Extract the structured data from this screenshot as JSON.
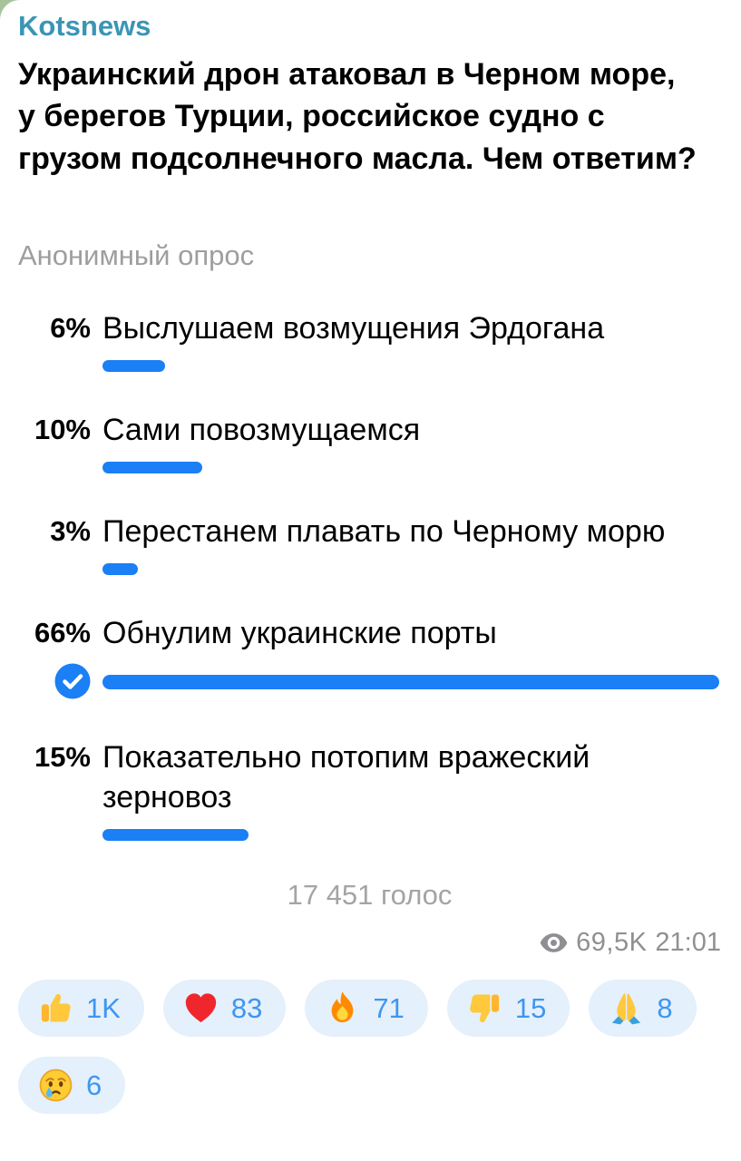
{
  "channel": {
    "name": "Kotsnews"
  },
  "post": {
    "question": "Украинский дрон атаковал в Черном море, у берегов Турции, российское судно с грузом подсолнечного масла. Чем ответим?"
  },
  "poll": {
    "type_label": "Анонимный опрос",
    "options": [
      {
        "percent": "6%",
        "value": 6,
        "label": "Выслушаем возмущения Эрдогана",
        "chosen": false
      },
      {
        "percent": "10%",
        "value": 10,
        "label": "Сами повозмущаемся",
        "chosen": false
      },
      {
        "percent": "3%",
        "value": 3,
        "label": "Перестанем плавать по Черному морю",
        "chosen": false
      },
      {
        "percent": "66%",
        "value": 66,
        "label": "Обнулим украинские порты",
        "chosen": true
      },
      {
        "percent": "15%",
        "value": 15,
        "label": "Показательно потопим вражеский зерновоз",
        "chosen": false
      }
    ],
    "max_percent": 66,
    "total_votes_label": "17 451 голос"
  },
  "meta": {
    "views": "69,5K",
    "time": "21:01"
  },
  "reactions": [
    {
      "icon": "thumbs-up-icon",
      "count": "1K"
    },
    {
      "icon": "heart-icon",
      "count": "83"
    },
    {
      "icon": "fire-icon",
      "count": "71"
    },
    {
      "icon": "thumbs-down-icon",
      "count": "15"
    },
    {
      "icon": "pray-icon",
      "count": "8"
    },
    {
      "icon": "crying-face-icon",
      "count": "6"
    }
  ],
  "colors": {
    "accent_blue": "#1B7FF5",
    "channel_teal": "#3A95B5",
    "muted_gray": "#9E9E9E",
    "reaction_bg": "#E4F0FB",
    "reaction_text": "#3E96F0",
    "chat_background_green": "#A6C49A"
  }
}
